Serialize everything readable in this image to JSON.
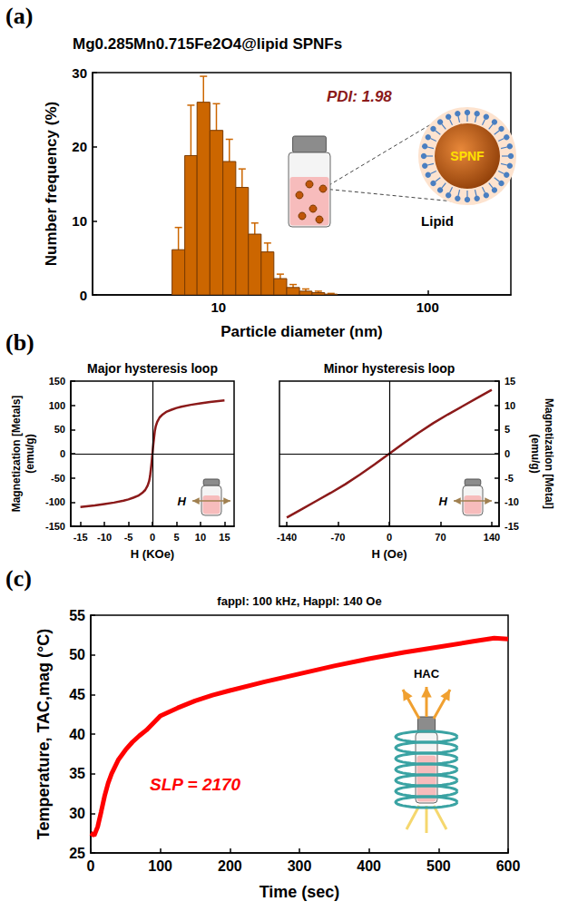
{
  "chart_data": [
    {
      "type": "histogram",
      "panel_label": "(a)",
      "title": "Mg0.285Mn0.715Fe2O4@lipid SPNFs",
      "x_label": "Particle diameter (nm)",
      "y_label": "Number frequency (%)",
      "bins": [
        6.0,
        6.9,
        7.9,
        9.1,
        10.5,
        12.1,
        13.9,
        16.0,
        18.4,
        21.2,
        24.4,
        28.0,
        32.2,
        37.0
      ],
      "values": [
        6.1,
        18.8,
        26.0,
        22.2,
        18.0,
        14.5,
        8.2,
        5.8,
        2.2,
        1.0,
        0.5,
        0.3,
        0.1
      ],
      "errors": [
        3.0,
        6.8,
        3.5,
        3.6,
        3.0,
        2.5,
        1.5,
        1.2,
        0.6,
        0.4,
        0.3,
        0.2,
        0.1
      ],
      "color": "#cc6600",
      "log": "x",
      "xlim": [
        2.5,
        250
      ],
      "xticks": [
        10,
        100
      ],
      "ylim": [
        0,
        30
      ],
      "yticks": [
        0,
        10,
        20,
        30
      ],
      "grid": false,
      "annotations": [
        "PDI: 1.98",
        "SPNF",
        "Lipid"
      ]
    },
    {
      "type": "line",
      "panel_label": "(b)",
      "title": "Major hysteresis loop",
      "x_label": "H (KOe)",
      "y_label": "Magnetization [Metals] (emu/g)",
      "x": [
        -15,
        -12,
        -10,
        -8,
        -6,
        -5,
        -4,
        -3,
        -2,
        -1.5,
        -1,
        -0.7,
        -0.5,
        -0.3,
        -0.2,
        -0.1,
        0,
        0.1,
        0.2,
        0.3,
        0.5,
        0.7,
        1,
        1.5,
        2,
        3,
        4,
        5,
        6,
        8,
        10,
        12,
        15
      ],
      "values": [
        -110,
        -107,
        -104,
        -101,
        -97,
        -94.5,
        -91,
        -87,
        -80,
        -75,
        -66,
        -57,
        -47,
        -30,
        -21,
        -11,
        0,
        11,
        21,
        30,
        47,
        57,
        66,
        75,
        80,
        87,
        91,
        94.5,
        97,
        101,
        104,
        107,
        110
      ],
      "color": "#8b1a1a",
      "xlim": [
        -17,
        17
      ],
      "xticks": [
        -15,
        -10,
        -5,
        0,
        5,
        10,
        15
      ],
      "ylim": [
        -150,
        150
      ],
      "yticks": [
        -150,
        -100,
        -50,
        0,
        50,
        100,
        150
      ],
      "grid": false,
      "annotations": [
        "H"
      ]
    },
    {
      "type": "line",
      "title": "Minor hysteresis loop",
      "x_label": "H (Oe)",
      "y2_label": "Magnetization [Metal] (emu/g)",
      "x": [
        -140,
        -120,
        -100,
        -80,
        -60,
        -40,
        -20,
        0,
        20,
        40,
        60,
        80,
        100,
        120,
        140
      ],
      "series": [
        {
          "axis": "y2",
          "color": "#8b1a1a",
          "values": [
            -13.2,
            -11.5,
            -9.8,
            -8.1,
            -6.3,
            -4.3,
            -2.2,
            0,
            2.2,
            4.3,
            6.3,
            8.1,
            9.8,
            11.5,
            13.2
          ]
        }
      ],
      "xlim": [
        -150,
        150
      ],
      "xticks": [
        -140,
        -70,
        0,
        70,
        140
      ],
      "y2lim": [
        -15,
        15
      ],
      "y2ticks": [
        -15,
        -10,
        -5,
        0,
        5,
        10,
        15
      ],
      "grid": false,
      "annotations": [
        "H"
      ]
    },
    {
      "type": "line",
      "panel_label": "(c)",
      "subtitle": "fappl: 100 kHz, Happl: 140 Oe",
      "x_label": "Time (sec)",
      "y_label": "Temperature, TAC,mag (°C)",
      "x": [
        0,
        5,
        10,
        15,
        20,
        25,
        30,
        40,
        50,
        60,
        70,
        80,
        100,
        125,
        150,
        175,
        200,
        250,
        300,
        350,
        400,
        450,
        500,
        550,
        580,
        600
      ],
      "values": [
        27.5,
        27.2,
        28.3,
        30.2,
        32.2,
        33.8,
        35.0,
        36.8,
        38.0,
        39.0,
        39.8,
        40.5,
        42.3,
        43.3,
        44.2,
        44.9,
        45.5,
        46.6,
        47.6,
        48.6,
        49.5,
        50.3,
        51.0,
        51.7,
        52.1,
        52.0
      ],
      "color": "#ff0000",
      "xlim": [
        0,
        600
      ],
      "xticks": [
        0,
        100,
        200,
        300,
        400,
        500,
        600
      ],
      "ylim": [
        25,
        55
      ],
      "yticks": [
        25,
        30,
        35,
        40,
        45,
        50,
        55
      ],
      "grid": false,
      "annotations": [
        "SLP = 2170",
        "HAC"
      ]
    }
  ]
}
